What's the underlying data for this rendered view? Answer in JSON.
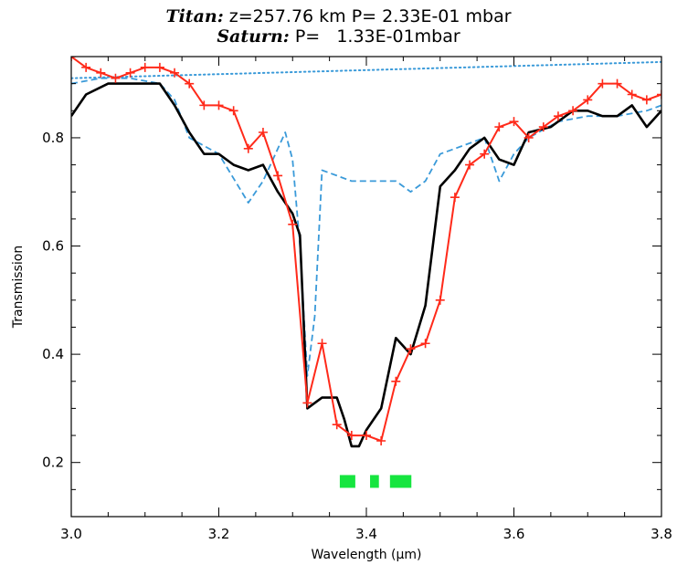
{
  "chart_data": {
    "type": "line",
    "title_line1": {
      "object": "Titan:",
      "rest": " z=257.76 km P= 2.33E-01 mbar"
    },
    "title_line2": {
      "object": "Saturn:",
      "rest": " P=   1.33E-01mbar"
    },
    "xlabel": "Wavelength (µm)",
    "ylabel": "Transmission",
    "xlim": [
      3.0,
      3.8
    ],
    "ylim": [
      0.1,
      0.95
    ],
    "x_ticks": [
      "3.0",
      "3.2",
      "3.4",
      "3.6",
      "3.8"
    ],
    "y_ticks": [
      "0.2",
      "0.4",
      "0.6",
      "0.8"
    ],
    "grid": false,
    "series": [
      {
        "color": "#000000",
        "style": "solid-thick",
        "x": [
          3.0,
          3.02,
          3.05,
          3.08,
          3.1,
          3.12,
          3.14,
          3.16,
          3.18,
          3.2,
          3.22,
          3.24,
          3.26,
          3.28,
          3.3,
          3.31,
          3.32,
          3.34,
          3.36,
          3.37,
          3.38,
          3.39,
          3.4,
          3.42,
          3.44,
          3.46,
          3.48,
          3.5,
          3.52,
          3.54,
          3.56,
          3.58,
          3.6,
          3.62,
          3.65,
          3.68,
          3.7,
          3.72,
          3.74,
          3.76,
          3.78,
          3.8
        ],
        "y": [
          0.84,
          0.88,
          0.9,
          0.9,
          0.9,
          0.9,
          0.86,
          0.81,
          0.77,
          0.77,
          0.75,
          0.74,
          0.75,
          0.7,
          0.66,
          0.62,
          0.3,
          0.32,
          0.32,
          0.28,
          0.23,
          0.23,
          0.26,
          0.3,
          0.43,
          0.4,
          0.49,
          0.71,
          0.74,
          0.78,
          0.8,
          0.76,
          0.75,
          0.81,
          0.82,
          0.85,
          0.85,
          0.84,
          0.84,
          0.86,
          0.82,
          0.85
        ]
      },
      {
        "color": "#ff2a1a",
        "style": "solid-plus-markers",
        "x": [
          3.0,
          3.02,
          3.04,
          3.06,
          3.08,
          3.1,
          3.12,
          3.14,
          3.16,
          3.18,
          3.2,
          3.22,
          3.24,
          3.26,
          3.28,
          3.3,
          3.32,
          3.34,
          3.36,
          3.38,
          3.4,
          3.42,
          3.44,
          3.46,
          3.48,
          3.5,
          3.52,
          3.54,
          3.56,
          3.58,
          3.6,
          3.62,
          3.64,
          3.66,
          3.68,
          3.7,
          3.72,
          3.74,
          3.76,
          3.78,
          3.8
        ],
        "y": [
          0.95,
          0.93,
          0.92,
          0.91,
          0.92,
          0.93,
          0.93,
          0.92,
          0.9,
          0.86,
          0.86,
          0.85,
          0.78,
          0.81,
          0.73,
          0.64,
          0.31,
          0.42,
          0.27,
          0.25,
          0.25,
          0.24,
          0.35,
          0.41,
          0.42,
          0.5,
          0.69,
          0.75,
          0.77,
          0.82,
          0.83,
          0.8,
          0.82,
          0.84,
          0.85,
          0.87,
          0.9,
          0.9,
          0.88,
          0.87,
          0.88
        ]
      },
      {
        "color": "#3a9ad9",
        "style": "dashed",
        "x": [
          3.0,
          3.04,
          3.08,
          3.12,
          3.14,
          3.16,
          3.2,
          3.24,
          3.26,
          3.27,
          3.29,
          3.3,
          3.31,
          3.32,
          3.33,
          3.34,
          3.36,
          3.38,
          3.4,
          3.42,
          3.44,
          3.46,
          3.48,
          3.5,
          3.52,
          3.54,
          3.56,
          3.58,
          3.6,
          3.62,
          3.66,
          3.7,
          3.74,
          3.78,
          3.8
        ],
        "y": [
          0.9,
          0.91,
          0.91,
          0.9,
          0.87,
          0.8,
          0.77,
          0.68,
          0.72,
          0.75,
          0.81,
          0.76,
          0.6,
          0.36,
          0.47,
          0.74,
          0.73,
          0.72,
          0.72,
          0.72,
          0.72,
          0.7,
          0.72,
          0.77,
          0.78,
          0.79,
          0.8,
          0.72,
          0.77,
          0.8,
          0.83,
          0.84,
          0.84,
          0.85,
          0.86
        ]
      },
      {
        "color": "#3a9ad9",
        "style": "dotted",
        "x": [
          3.0,
          3.8
        ],
        "y": [
          0.91,
          0.94
        ]
      }
    ],
    "highlight_bands": [
      {
        "x": [
          3.364,
          3.385
        ],
        "color": "#16e53f"
      },
      {
        "x": [
          3.405,
          3.417
        ],
        "color": "#16e53f"
      },
      {
        "x": [
          3.432,
          3.461
        ],
        "color": "#16e53f"
      }
    ],
    "band_y": 0.165
  }
}
